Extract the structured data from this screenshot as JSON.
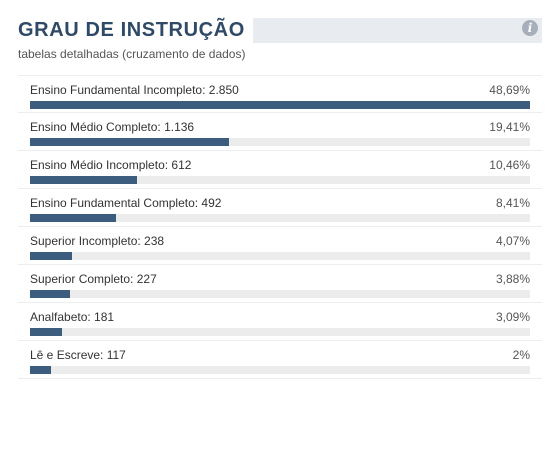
{
  "header": {
    "title": "GRAU DE INSTRUÇÃO",
    "subtitle": "tabelas detalhadas (cruzamento de dados)",
    "info_icon": "info-icon"
  },
  "colors": {
    "bar_fill": "#3d5d7e",
    "bar_track": "#ececec",
    "title": "#2f4a66"
  },
  "chart_data": {
    "type": "bar",
    "orientation": "horizontal",
    "categories": [
      "Ensino Fundamental Incompleto",
      "Ensino Médio Completo",
      "Ensino Médio Incompleto",
      "Ensino Fundamental Completo",
      "Superior Incompleto",
      "Superior Completo",
      "Analfabeto",
      "Lê e Escreve"
    ],
    "labels": [
      "Ensino Fundamental Incompleto: 2.850",
      "Ensino Médio Completo: 1.136",
      "Ensino Médio Incompleto: 612",
      "Ensino Fundamental Completo: 492",
      "Superior Incompleto: 238",
      "Superior Completo: 227",
      "Analfabeto: 181",
      "Lê e Escreve: 117"
    ],
    "values": [
      2850,
      1136,
      612,
      492,
      238,
      227,
      181,
      117
    ],
    "percent_labels": [
      "48,69%",
      "19,41%",
      "10,46%",
      "8,41%",
      "4,07%",
      "3,88%",
      "3,09%",
      "2%"
    ],
    "title": "GRAU DE INSTRUÇÃO",
    "subtitle": "tabelas detalhadas (cruzamento de dados)"
  }
}
